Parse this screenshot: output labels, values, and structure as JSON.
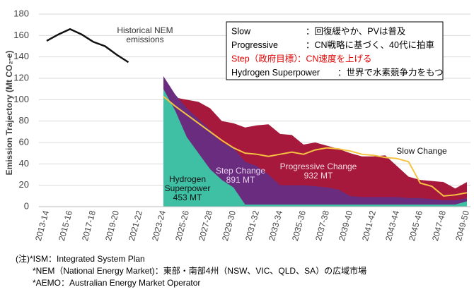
{
  "chart_data": {
    "type": "area",
    "ylabel": "Emission Trajectory (Mt CO₂-e)",
    "ylim": [
      0,
      180
    ],
    "yticks": [
      0,
      20,
      40,
      60,
      80,
      100,
      120,
      140,
      160,
      180
    ],
    "grid": true,
    "categories": [
      "2013-14",
      null,
      "2015-16",
      null,
      "2017-18",
      null,
      "2019-20",
      null,
      "2021-22",
      null,
      "2023-24",
      null,
      "2025-26",
      null,
      "2027-28",
      null,
      "2029-30",
      null,
      "2031-32",
      null,
      "2033-34",
      null,
      "2035-36",
      null,
      "2037-38",
      null,
      "2039-40",
      null,
      "2041-42",
      null,
      "2043-44",
      null,
      "2045-46",
      null,
      "2047-48",
      null,
      "2049-50"
    ],
    "series": [
      {
        "name": "Progressive Change",
        "style": "area",
        "color": "#a6193c",
        "values": [
          null,
          null,
          null,
          null,
          null,
          null,
          null,
          null,
          null,
          null,
          110,
          102,
          100,
          98,
          92,
          80,
          78,
          74,
          76,
          77,
          68,
          67,
          58,
          60,
          57,
          54,
          50,
          47,
          47,
          48,
          38,
          28,
          25,
          24,
          23,
          17,
          23
        ]
      },
      {
        "name": "Step Change",
        "style": "area",
        "color": "#6a2c7e",
        "values": [
          null,
          null,
          null,
          null,
          null,
          null,
          null,
          null,
          null,
          null,
          122,
          105,
          92,
          82,
          72,
          60,
          55,
          42,
          38,
          30,
          20,
          20,
          20,
          19,
          18,
          16,
          10,
          9,
          9,
          9,
          9,
          8,
          8,
          7,
          6,
          6,
          8
        ]
      },
      {
        "name": "Hydrogen Superpower",
        "style": "area",
        "color": "#3fbfa3",
        "values": [
          null,
          null,
          null,
          null,
          null,
          null,
          null,
          null,
          null,
          null,
          110,
          90,
          65,
          50,
          35,
          25,
          18,
          2,
          2,
          2,
          2,
          2,
          2,
          2,
          2,
          2,
          2,
          2,
          2,
          2,
          2,
          2,
          2,
          2,
          2,
          2,
          5
        ]
      },
      {
        "name": "Slow Change",
        "style": "line",
        "color": "#f5c242",
        "values": [
          null,
          null,
          null,
          null,
          null,
          null,
          null,
          null,
          null,
          null,
          103,
          94,
          86,
          78,
          70,
          62,
          55,
          50,
          49,
          47,
          49,
          51,
          49,
          53,
          55,
          54,
          52,
          49,
          48,
          46,
          45,
          42,
          22,
          19,
          10,
          11,
          13
        ]
      },
      {
        "name": "Historical NEM emissions",
        "style": "line",
        "color": "#111111",
        "values": [
          155,
          161,
          166,
          161,
          154,
          150,
          142,
          135,
          null,
          null,
          null,
          null,
          null,
          null,
          null,
          null,
          null,
          null,
          null,
          null,
          null,
          null,
          null,
          null,
          null,
          null,
          null,
          null,
          null,
          null,
          null,
          null,
          null,
          null,
          null,
          null,
          null
        ]
      }
    ],
    "annotations": [
      {
        "lines": [
          "Historical NEM",
          "emissions"
        ],
        "color": "#333333"
      },
      {
        "lines": [
          "Hydrogen",
          "Superpower",
          "453 MT"
        ],
        "color": "#111111"
      },
      {
        "lines": [
          "Step Change",
          "891 MT"
        ],
        "color": "#e6cfee"
      },
      {
        "lines": [
          "Progressive Change",
          "932 MT"
        ],
        "color": "#f4dce2"
      },
      {
        "lines": [
          "Slow Change"
        ],
        "color": "#111111"
      }
    ],
    "legend_box": [
      {
        "key": "Slow",
        "desc": "：回復緩やか、PVは普及",
        "color": "#000000"
      },
      {
        "key": "Progressive",
        "desc": "：CN戦略に基づく、40代に拍車",
        "color": "#000000"
      },
      {
        "key": "Step（政府目標）",
        "desc": "：CN速度を上げる",
        "color": "#e00000"
      },
      {
        "key": "Hydrogen Superpower",
        "desc": "：世界で水素競争力をもつ",
        "color": "#000000"
      }
    ]
  },
  "notes": [
    "(注)*ISM：Integrated System Plan",
    "*NEM（National Energy Market)：東部・南部4州（NSW、VIC、QLD、SA）の広域市場",
    "*AEMO：Australian Energy Market Operator"
  ]
}
